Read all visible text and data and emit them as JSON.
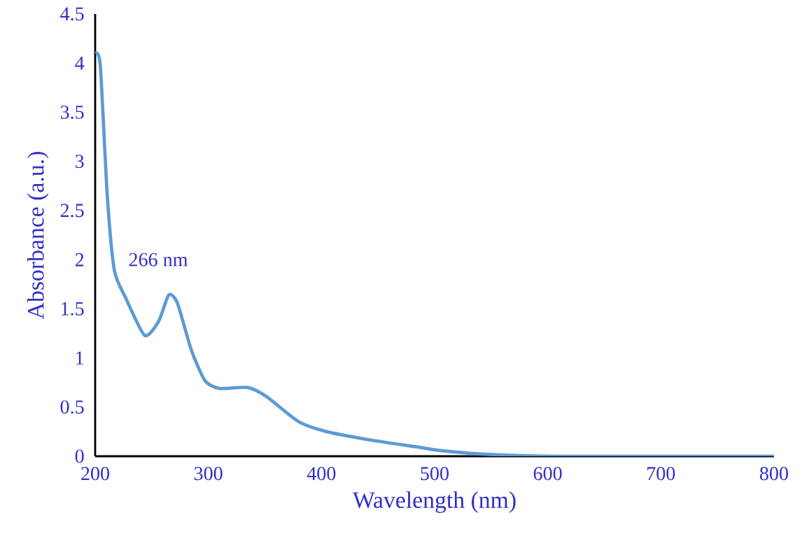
{
  "chart_data": {
    "type": "line",
    "xlabel": "Wavelength (nm)",
    "ylabel": "Absorbance (a.u.)",
    "xlim": [
      200,
      800
    ],
    "xticks": [
      200,
      300,
      400,
      500,
      600,
      700,
      800
    ],
    "ylim": [
      0,
      4.5
    ],
    "yticks": [
      0,
      0.5,
      1,
      1.5,
      2,
      2.5,
      3,
      3.5,
      4,
      4.5
    ],
    "x": [
      200,
      204.5,
      210.7,
      217,
      227,
      243.7,
      256,
      265,
      272.6,
      285,
      297,
      309.8,
      334.5,
      351,
      380,
      404.6,
      446,
      487,
      503.6,
      545,
      607,
      700,
      800
    ],
    "series": [
      {
        "color": "#5b9bd5",
        "values": [
          4.1,
          3.98,
          2.65,
          1.89,
          1.61,
          1.23,
          1.37,
          1.64,
          1.56,
          1.08,
          0.77,
          0.69,
          0.7,
          0.61,
          0.35,
          0.25,
          0.16,
          0.09,
          0.06,
          0.02,
          0,
          0,
          0
        ]
      }
    ],
    "annotations": [
      {
        "text": "266 nm",
        "x": 266,
        "y": 1.64
      }
    ],
    "grid": false,
    "legend": false,
    "marker": "none",
    "line_style": "solid"
  }
}
